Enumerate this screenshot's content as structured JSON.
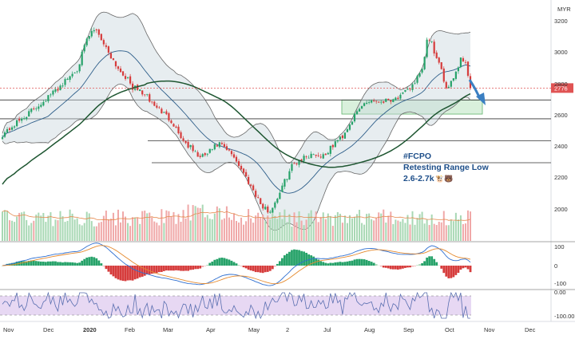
{
  "chart_data": {
    "type": "candlestick",
    "currency": "MYR",
    "last_price_label": "2776",
    "x_labels": [
      "Nov",
      "Dec",
      "2020",
      "Feb",
      "Mar",
      "Apr",
      "May",
      "2",
      "Jul",
      "Aug",
      "Sep",
      "Oct",
      "Nov",
      "Dec"
    ],
    "price_ticks": [
      "3200",
      "3000",
      "2800",
      "2600",
      "2400",
      "2200",
      "2000"
    ],
    "ylim": [
      1880,
      3260
    ],
    "macd_ticks": [
      "100",
      "0",
      "-100"
    ],
    "rsi_ticks": [
      "0.00",
      "-100.00"
    ],
    "horizontal_levels": [
      2700,
      2580,
      2440,
      2300
    ],
    "support_zone": [
      2610,
      2700
    ],
    "annotation": [
      "#FCPO",
      "Retesting Range Low",
      "2.6-2.7k"
    ],
    "annotation_emoji": "🐮🐻",
    "price_anchors": [
      [
        0,
        2480
      ],
      [
        8,
        2580
      ],
      [
        16,
        2680
      ],
      [
        22,
        2760
      ],
      [
        26,
        2820
      ],
      [
        31,
        2900
      ],
      [
        35,
        3080
      ],
      [
        37,
        3130
      ],
      [
        39,
        3150
      ],
      [
        42,
        3060
      ],
      [
        45,
        2980
      ],
      [
        48,
        2900
      ],
      [
        51,
        2850
      ],
      [
        54,
        2780
      ],
      [
        57,
        2760
      ],
      [
        60,
        2720
      ],
      [
        62,
        2680
      ],
      [
        65,
        2640
      ],
      [
        70,
        2570
      ],
      [
        75,
        2440
      ],
      [
        79,
        2380
      ],
      [
        82,
        2330
      ],
      [
        85,
        2360
      ],
      [
        88,
        2400
      ],
      [
        90,
        2420
      ],
      [
        93,
        2380
      ],
      [
        96,
        2340
      ],
      [
        99,
        2260
      ],
      [
        102,
        2180
      ],
      [
        105,
        2100
      ],
      [
        108,
        2010
      ],
      [
        111,
        1990
      ],
      [
        114,
        2080
      ],
      [
        117,
        2180
      ],
      [
        120,
        2280
      ],
      [
        123,
        2320
      ],
      [
        126,
        2340
      ],
      [
        129,
        2360
      ],
      [
        132,
        2340
      ],
      [
        135,
        2370
      ],
      [
        138,
        2430
      ],
      [
        141,
        2470
      ],
      [
        144,
        2550
      ],
      [
        147,
        2620
      ],
      [
        150,
        2680
      ],
      [
        153,
        2700
      ],
      [
        156,
        2690
      ],
      [
        159,
        2700
      ],
      [
        162,
        2710
      ],
      [
        165,
        2720
      ],
      [
        168,
        2760
      ],
      [
        170,
        2800
      ],
      [
        172,
        2840
      ],
      [
        174,
        2880
      ],
      [
        176,
        3080
      ],
      [
        178,
        3060
      ],
      [
        180,
        2960
      ],
      [
        182,
        2880
      ],
      [
        184,
        2780
      ],
      [
        186,
        2820
      ],
      [
        188,
        2880
      ],
      [
        190,
        2960
      ],
      [
        192,
        2950
      ],
      [
        193,
        2860
      ],
      [
        194,
        2776
      ]
    ]
  }
}
